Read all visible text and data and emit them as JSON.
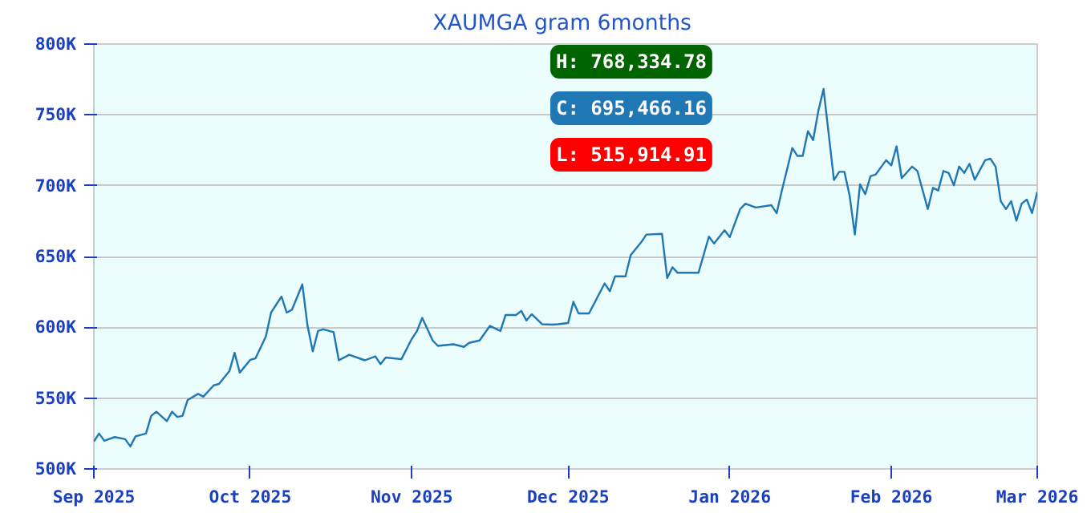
{
  "chart_data": {
    "type": "line",
    "title": "XAUMGA gram  6months",
    "x": [
      "2025-09-01",
      "2025-09-02",
      "2025-09-03",
      "2025-09-05",
      "2025-09-07",
      "2025-09-08",
      "2025-09-09",
      "2025-09-11",
      "2025-09-12",
      "2025-09-13",
      "2025-09-15",
      "2025-09-16",
      "2025-09-17",
      "2025-09-18",
      "2025-09-19",
      "2025-09-21",
      "2025-09-22",
      "2025-09-24",
      "2025-09-25",
      "2025-09-27",
      "2025-09-28",
      "2025-09-29",
      "2025-10-01",
      "2025-10-02",
      "2025-10-04",
      "2025-10-05",
      "2025-10-07",
      "2025-10-08",
      "2025-10-09",
      "2025-10-11",
      "2025-10-12",
      "2025-10-13",
      "2025-10-14",
      "2025-10-15",
      "2025-10-17",
      "2025-10-18",
      "2025-10-20",
      "2025-10-23",
      "2025-10-25",
      "2025-10-26",
      "2025-10-27",
      "2025-10-30",
      "2025-11-01",
      "2025-11-02",
      "2025-11-03",
      "2025-11-05",
      "2025-11-06",
      "2025-11-09",
      "2025-11-11",
      "2025-11-12",
      "2025-11-14",
      "2025-11-16",
      "2025-11-18",
      "2025-11-19",
      "2025-11-21",
      "2025-11-22",
      "2025-11-23",
      "2025-11-24",
      "2025-11-26",
      "2025-11-28",
      "2025-11-29",
      "2025-12-01",
      "2025-12-02",
      "2025-12-03",
      "2025-12-05",
      "2025-12-08",
      "2025-12-09",
      "2025-12-10",
      "2025-12-12",
      "2025-12-13",
      "2025-12-15",
      "2025-12-16",
      "2025-12-19",
      "2025-12-20",
      "2025-12-21",
      "2025-12-22",
      "2025-12-26",
      "2025-12-28",
      "2025-12-29",
      "2025-12-31",
      "2026-01-01",
      "2026-01-03",
      "2026-01-04",
      "2026-01-06",
      "2026-01-09",
      "2026-01-10",
      "2026-01-11",
      "2026-01-13",
      "2026-01-14",
      "2026-01-15",
      "2026-01-16",
      "2026-01-17",
      "2026-01-18",
      "2026-01-19",
      "2026-01-20",
      "2026-01-21",
      "2026-01-22",
      "2026-01-23",
      "2026-01-24",
      "2026-01-25",
      "2026-01-26",
      "2026-01-27",
      "2026-01-28",
      "2026-01-29",
      "2026-01-31",
      "2026-02-01",
      "2026-02-02",
      "2026-02-03",
      "2026-02-05",
      "2026-02-06",
      "2026-02-08",
      "2026-02-09",
      "2026-02-10",
      "2026-02-11",
      "2026-02-12",
      "2026-02-13",
      "2026-02-14",
      "2026-02-15",
      "2026-02-16",
      "2026-02-17",
      "2026-02-19",
      "2026-02-20",
      "2026-02-21",
      "2026-02-22",
      "2026-02-23",
      "2026-02-24",
      "2026-02-25",
      "2026-02-26",
      "2026-02-27",
      "2026-02-28",
      "2026-03-01"
    ],
    "series": [
      {
        "color": "#1f77b4",
        "values": [
          519400,
          525000,
          519900,
          522500,
          521000,
          515900,
          523000,
          525000,
          537400,
          540400,
          533700,
          540400,
          536700,
          537400,
          548700,
          553000,
          551000,
          559000,
          560000,
          569000,
          582000,
          568000,
          577000,
          578000,
          593600,
          610400,
          621700,
          610400,
          612400,
          630300,
          601000,
          583000,
          597400,
          598600,
          596600,
          576700,
          580600,
          576700,
          579500,
          574000,
          578700,
          577500,
          591800,
          597400,
          606700,
          590700,
          586900,
          588000,
          586200,
          589000,
          590700,
          601000,
          597400,
          608700,
          608700,
          611600,
          604800,
          609300,
          602200,
          601900,
          602200,
          603000,
          618000,
          609800,
          609800,
          631000,
          625500,
          636000,
          636000,
          651000,
          660000,
          665500,
          666000,
          634800,
          642400,
          638500,
          638500,
          664000,
          659200,
          668500,
          663700,
          683500,
          687300,
          684600,
          686200,
          680600,
          696600,
          726600,
          721000,
          721000,
          738500,
          732200,
          752800,
          768300,
          736000,
          704000,
          709800,
          709800,
          693000,
          665500,
          701000,
          694000,
          706700,
          707900,
          718000,
          714300,
          727800,
          705300,
          713500,
          710400,
          683500,
          698500,
          696600,
          710400,
          709000,
          700300,
          713500,
          709000,
          715400,
          704200,
          718000,
          719100,
          713500,
          689000,
          683500,
          689000,
          675300,
          687300,
          690200,
          680600,
          695500
        ]
      }
    ],
    "xlim": [
      "2025-09-01",
      "2026-03-01"
    ],
    "xticks": [
      {
        "value": "2025-09-01",
        "label": "Sep 2025"
      },
      {
        "value": "2025-10-01",
        "label": "Oct 2025"
      },
      {
        "value": "2025-11-01",
        "label": "Nov 2025"
      },
      {
        "value": "2025-12-01",
        "label": "Dec 2025"
      },
      {
        "value": "2026-01-01",
        "label": "Jan 2026"
      },
      {
        "value": "2026-02-01",
        "label": "Feb 2026"
      },
      {
        "value": "2026-03-01",
        "label": "Mar 2026"
      }
    ],
    "ylim": [
      500000,
      800000
    ],
    "yticks": [
      {
        "value": 500000,
        "label": "500K"
      },
      {
        "value": 550000,
        "label": "550K"
      },
      {
        "value": 600000,
        "label": "600K"
      },
      {
        "value": 650000,
        "label": "650K"
      },
      {
        "value": 700000,
        "label": "700K"
      },
      {
        "value": 750000,
        "label": "750K"
      },
      {
        "value": 800000,
        "label": "800K"
      }
    ],
    "annotations": [
      "H: 768,334.78",
      "C: 695,466.16",
      "L: 515,914.91"
    ],
    "grid": "y",
    "marker": "none",
    "line_style": "solid"
  }
}
